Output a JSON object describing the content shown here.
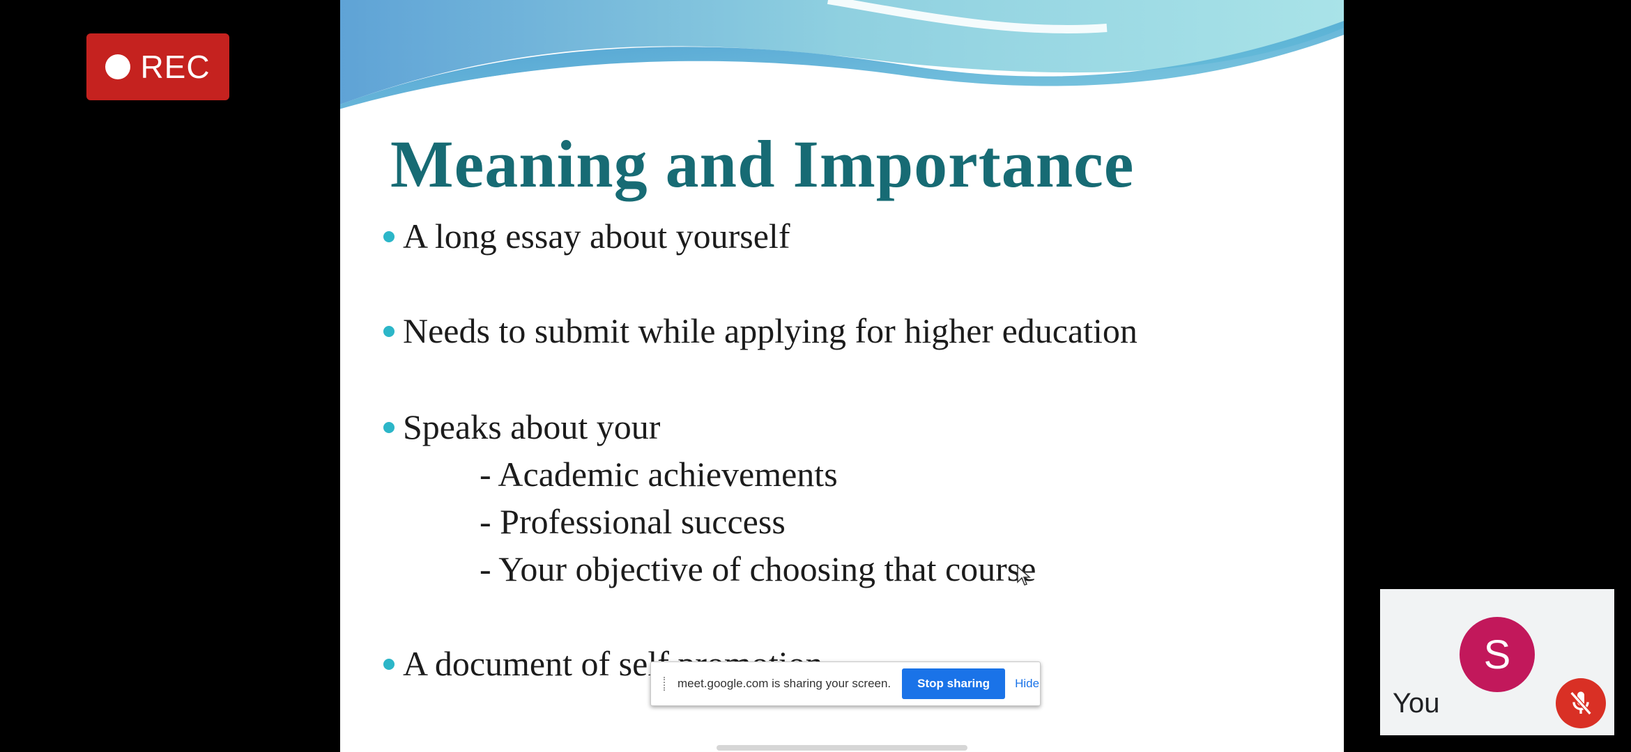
{
  "recording": {
    "label": "REC",
    "color": "#c5221f"
  },
  "slide": {
    "title": "Meaning and Importance",
    "bullets": [
      "A long essay about yourself",
      "Needs to submit while applying for higher education",
      "Speaks about your",
      "A document of self promotion"
    ],
    "sub_items": [
      "- Academic achievements",
      "- Professional success",
      "- Your objective of choosing that course"
    ],
    "title_color": "#176b74",
    "bullet_color": "#2cb6c8"
  },
  "share_bar": {
    "message": "meet.google.com is sharing your screen.",
    "stop_label": "Stop sharing",
    "hide_label": "Hide"
  },
  "self_tile": {
    "avatar_initial": "S",
    "name": "You",
    "avatar_color": "#c2185b",
    "mic_icon": "mic-off-icon"
  }
}
